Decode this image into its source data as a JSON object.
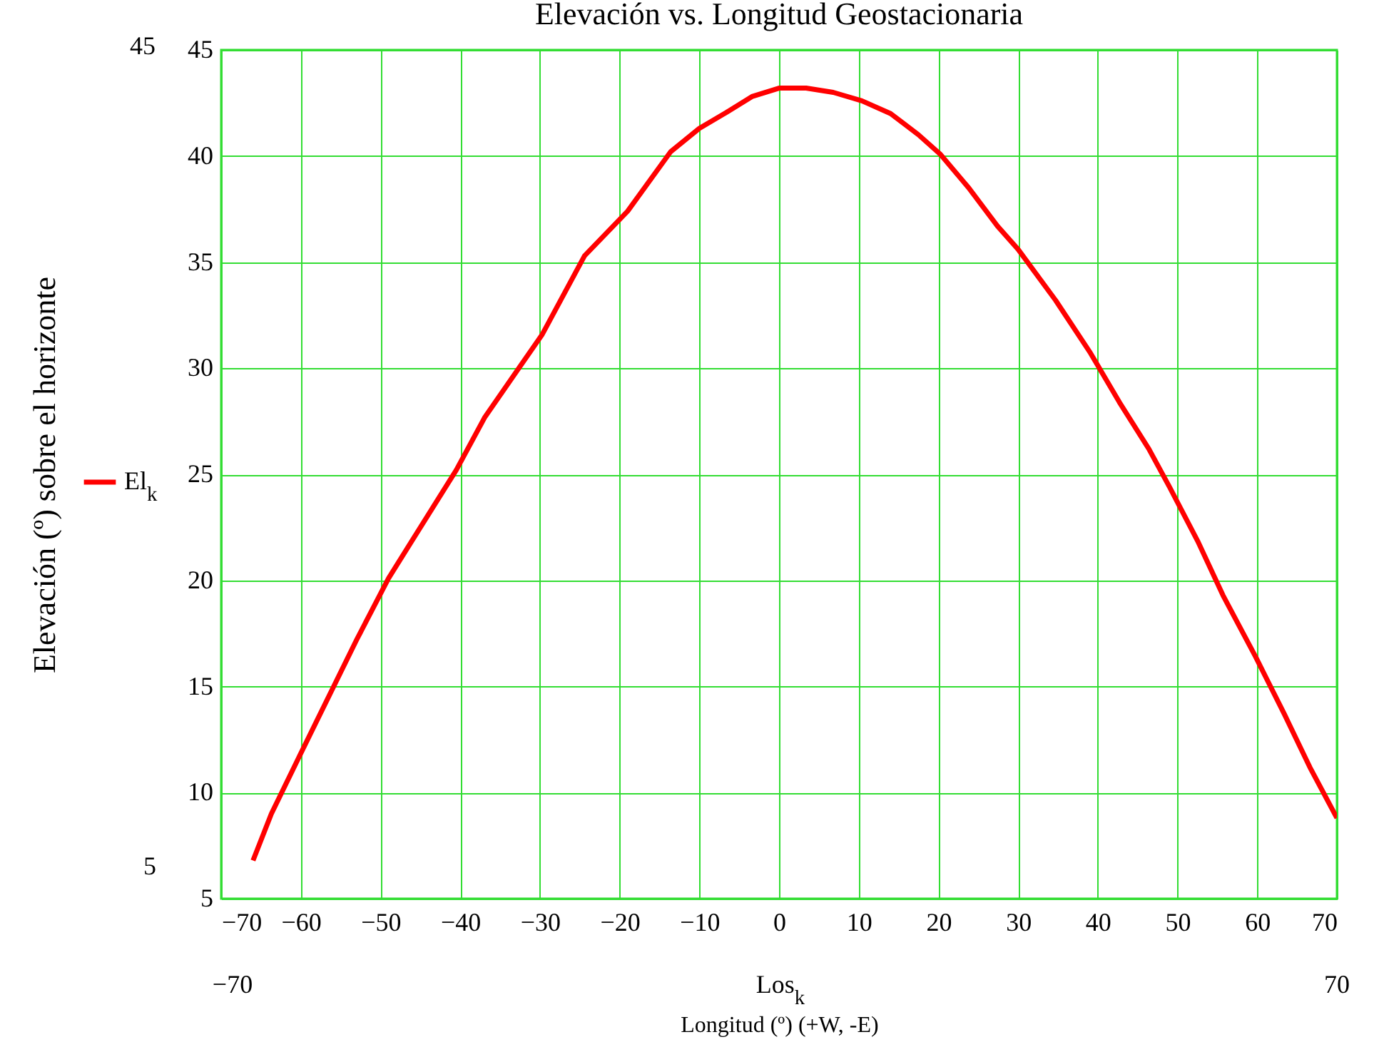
{
  "chart_data": {
    "type": "line",
    "title": "Elevación vs. Longitud Geostacionaria",
    "xlabel": "Longitud (º) (+W, -E)",
    "ylabel": "Elevación (º) sobre el horizonte",
    "x": [
      -66,
      -63.7,
      -60.2,
      -53,
      -49,
      -40.5,
      -36.9,
      -29.7,
      -24.4,
      -19,
      -13.6,
      -10,
      -6.4,
      -3.4,
      0,
      3.4,
      6.8,
      10.4,
      14,
      17.5,
      20.2,
      23.8,
      27.4,
      30,
      34.7,
      39.1,
      42.7,
      46.4,
      49,
      52.6,
      55.7,
      59.8,
      63.4,
      66.6,
      70
    ],
    "series": [
      {
        "name": "El$_{k}$",
        "color": "#ff0000",
        "values": [
          6.8,
          9,
          11.7,
          17.2,
          20.1,
          25.2,
          27.7,
          31.6,
          35.3,
          37.4,
          40.2,
          41.3,
          42.1,
          42.8,
          43.2,
          43.2,
          43,
          42.6,
          42,
          41,
          40.1,
          38.5,
          36.7,
          35.6,
          33.2,
          30.7,
          28.4,
          26.2,
          24.4,
          21.8,
          19.3,
          16.4,
          13.7,
          11.2,
          8.8
        ]
      }
    ],
    "xlim": [
      -70,
      70
    ],
    "xticks": [
      -70,
      -60,
      -50,
      -40,
      -30,
      -20,
      -10,
      0,
      10,
      20,
      30,
      40,
      50,
      60,
      70
    ],
    "ylim": [
      5,
      45
    ],
    "yticks": [
      5,
      10,
      15,
      20,
      25,
      30,
      35,
      40,
      45
    ],
    "grid": true,
    "legend": "left",
    "annotations": [
      "45",
      "5",
      "−70",
      "70",
      "Los$_{k}$"
    ]
  }
}
